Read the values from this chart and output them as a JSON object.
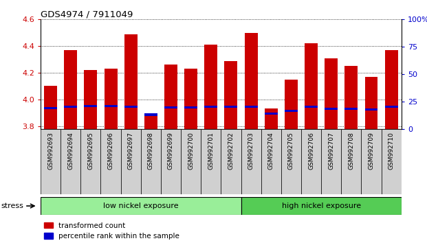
{
  "title": "GDS4974 / 7911049",
  "samples": [
    "GSM992693",
    "GSM992694",
    "GSM992695",
    "GSM992696",
    "GSM992697",
    "GSM992698",
    "GSM992699",
    "GSM992700",
    "GSM992701",
    "GSM992702",
    "GSM992703",
    "GSM992704",
    "GSM992705",
    "GSM992706",
    "GSM992707",
    "GSM992708",
    "GSM992709",
    "GSM992710"
  ],
  "red_values": [
    4.1,
    4.37,
    4.22,
    4.23,
    4.49,
    3.89,
    4.26,
    4.23,
    4.41,
    4.29,
    4.5,
    3.93,
    4.15,
    4.42,
    4.31,
    4.25,
    4.17,
    4.37
  ],
  "blue_values": [
    3.935,
    3.945,
    3.95,
    3.95,
    3.945,
    3.885,
    3.94,
    3.94,
    3.945,
    3.945,
    3.945,
    3.895,
    3.915,
    3.945,
    3.93,
    3.93,
    3.925,
    3.945
  ],
  "ymin": 3.78,
  "ymax": 4.6,
  "yticks": [
    3.8,
    4.0,
    4.2,
    4.4,
    4.6
  ],
  "y2min": 0,
  "y2max": 100,
  "y2ticks": [
    0,
    25,
    50,
    75,
    100
  ],
  "low_nickel_count": 10,
  "high_nickel_count": 8,
  "bar_color": "#cc0000",
  "blue_color": "#0000cc",
  "low_nickel_color": "#99ee99",
  "high_nickel_color": "#55cc55",
  "label_color_red": "#cc0000",
  "label_color_blue": "#0000cc",
  "legend_red": "transformed count",
  "legend_blue": "percentile rank within the sample",
  "group_label_low": "low nickel exposure",
  "group_label_high": "high nickel exposure",
  "stress_label": "stress",
  "bar_width": 0.65,
  "tick_label_bg": "#d0d0d0"
}
